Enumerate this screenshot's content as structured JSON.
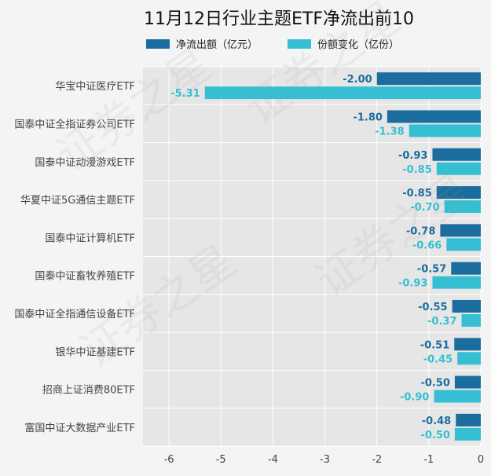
{
  "chart_data": {
    "type": "bar",
    "orientation": "horizontal",
    "title": "11月12日行业主题ETF净流出前10",
    "categories": [
      "华宝中证医疗ETF",
      "国泰中证全指证券公司ETF",
      "国泰中证动漫游戏ETF",
      "华夏中证5G通信主题ETF",
      "国泰中证计算机ETF",
      "国泰中证畜牧养殖ETF",
      "国泰中证全指通信设备ETF",
      "银华中证基建ETF",
      "招商上证消费80ETF",
      "富国中证大数据产业ETF"
    ],
    "series": [
      {
        "name": "净流出额（亿元）",
        "color": "#1b6d9e",
        "values": [
          -2.0,
          -1.8,
          -0.93,
          -0.85,
          -0.78,
          -0.57,
          -0.55,
          -0.51,
          -0.5,
          -0.48
        ],
        "labels": [
          "-2.00",
          "-1.80",
          "-0.93",
          "-0.85",
          "-0.78",
          "-0.57",
          "-0.55",
          "-0.51",
          "-0.50",
          "-0.48"
        ]
      },
      {
        "name": "份额变化（亿份）",
        "color": "#36bfd3",
        "values": [
          -5.31,
          -1.38,
          -0.85,
          -0.7,
          -0.66,
          -0.93,
          -0.37,
          -0.45,
          -0.9,
          -0.5
        ],
        "labels": [
          "-5.31",
          "-1.38",
          "-0.85",
          "-0.70",
          "-0.66",
          "-0.93",
          "-0.37",
          "-0.45",
          "-0.90",
          "-0.50"
        ]
      }
    ],
    "xlim": [
      -6.5,
      0
    ],
    "xticks": [
      -6,
      -5,
      -4,
      -3,
      -2,
      -1,
      0
    ],
    "xtick_labels": [
      "-6",
      "-5",
      "-4",
      "-3",
      "-2",
      "-1",
      "0"
    ],
    "grid": true,
    "legend_position": "top-center",
    "watermark": "证券之星"
  }
}
